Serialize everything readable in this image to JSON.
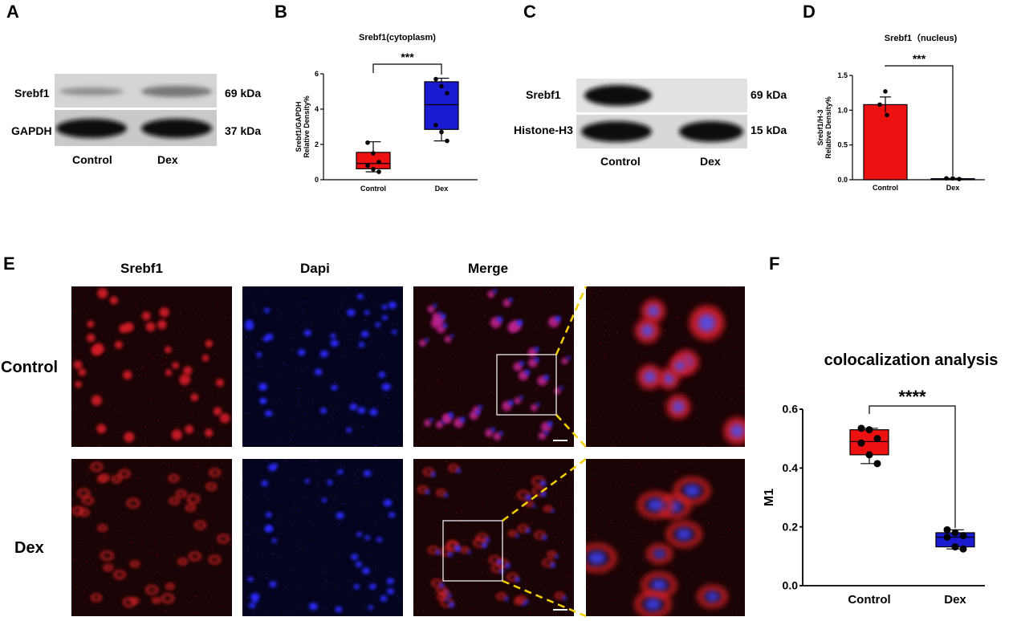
{
  "panels": {
    "A": "A",
    "B": "B",
    "C": "C",
    "D": "D",
    "E": "E",
    "F": "F"
  },
  "panel_a": {
    "rows": [
      "Srebf1",
      "GAPDH"
    ],
    "sizes": [
      "69 kDa",
      "37 kDa"
    ],
    "lanes": [
      "Control",
      "Dex"
    ]
  },
  "panel_c": {
    "rows": [
      "Srebf1",
      "Histone-H3"
    ],
    "sizes": [
      "69 kDa",
      "15 kDa"
    ],
    "lanes": [
      "Control",
      "Dex"
    ]
  },
  "panel_e": {
    "columns": [
      "Srebf1",
      "Dapi",
      "Merge"
    ],
    "rows": [
      "Control",
      "Dex"
    ]
  },
  "colors": {
    "control": "#ee1111",
    "dex": "#1a1ad0",
    "zoom_line": "#f5d000"
  },
  "chart_data": [
    {
      "id": "B",
      "type": "box",
      "title": "Srebf1(cytoplasm)",
      "ylabel_line1": "Srebf1/GAPDH",
      "ylabel_line2": "Relative Density%",
      "categories": [
        "Control",
        "Dex"
      ],
      "ylim": [
        0,
        6
      ],
      "yticks": [
        "0",
        "2",
        "4",
        "6"
      ],
      "significance": "***",
      "boxes": [
        {
          "name": "Control",
          "min": 0.45,
          "q1": 0.62,
          "median": 0.92,
          "q3": 1.55,
          "max": 2.15,
          "points": [
            2.1,
            1.5,
            1.0,
            0.8,
            0.6,
            0.45
          ]
        },
        {
          "name": "Dex",
          "min": 2.2,
          "q1": 2.85,
          "median": 4.25,
          "q3": 5.55,
          "max": 5.75,
          "points": [
            5.7,
            5.3,
            4.9,
            3.1,
            2.7,
            2.2
          ]
        }
      ]
    },
    {
      "id": "D",
      "type": "bar",
      "title": "Srebf1（nucleus)",
      "ylabel_line1": "Srebf1/H-3",
      "ylabel_line2": "Relative Density%",
      "categories": [
        "Control",
        "Dex"
      ],
      "ylim": [
        0,
        1.5
      ],
      "yticks": [
        "0.0",
        "0.5",
        "1.0",
        "1.5"
      ],
      "significance": "***",
      "values": [
        1.08,
        0.015
      ],
      "errors": [
        0.11,
        0.005
      ],
      "points": [
        [
          1.27,
          1.08,
          0.93
        ],
        [
          0.02,
          0.02,
          0.01
        ]
      ]
    },
    {
      "id": "F",
      "type": "box",
      "title": "colocalization analysis",
      "ylabel": "M1",
      "categories": [
        "Control",
        "Dex"
      ],
      "ylim": [
        0,
        0.6
      ],
      "yticks": [
        "0.0",
        "0.2",
        "0.4",
        "0.6"
      ],
      "significance": "****",
      "boxes": [
        {
          "name": "Control",
          "min": 0.415,
          "q1": 0.445,
          "median": 0.49,
          "q3": 0.53,
          "max": 0.535,
          "points": [
            0.535,
            0.53,
            0.5,
            0.485,
            0.445,
            0.415
          ]
        },
        {
          "name": "Dex",
          "min": 0.125,
          "q1": 0.132,
          "median": 0.165,
          "q3": 0.18,
          "max": 0.19,
          "points": [
            0.19,
            0.18,
            0.17,
            0.165,
            0.132,
            0.125
          ]
        }
      ]
    }
  ]
}
